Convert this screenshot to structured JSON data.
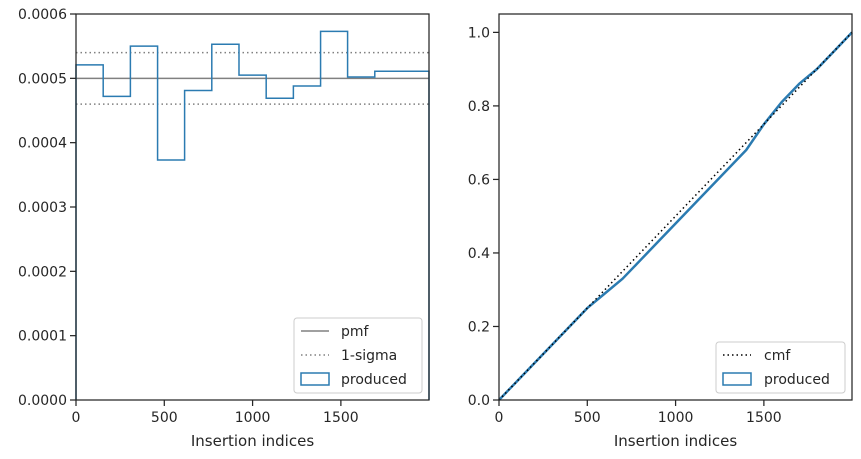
{
  "colors": {
    "pmf": "#808080",
    "sigma": "#808080",
    "produced": "#2b7bb1",
    "cmf": "#000000",
    "axes": "#262626"
  },
  "chart_data": [
    {
      "type": "line",
      "xlabel": "Insertion indices",
      "ylabel": "",
      "xlim": [
        0,
        1999
      ],
      "ylim": [
        0,
        0.0006
      ],
      "xticks": [
        0,
        500,
        1000,
        1500
      ],
      "yticks": [
        0.0,
        0.0001,
        0.0002,
        0.0003,
        0.0004,
        0.0005,
        0.0006
      ],
      "ytick_labels": [
        "0.0000",
        "0.0001",
        "0.0002",
        "0.0003",
        "0.0004",
        "0.0005",
        "0.0006"
      ],
      "legend_position": "bottom-right",
      "pmf": {
        "name": "pmf",
        "value": 0.0005
      },
      "sigma": {
        "name": "1-sigma",
        "values": [
          0.00054,
          0.00046
        ]
      },
      "produced": {
        "name": "produced",
        "style": "step histogram",
        "bin_edges": [
          0,
          154,
          308,
          462,
          615,
          769,
          923,
          1077,
          1231,
          1385,
          1538,
          1692,
          1999
        ],
        "values": [
          0.000521,
          0.000472,
          0.00055,
          0.000373,
          0.000481,
          0.000553,
          0.000505,
          0.000469,
          0.000488,
          0.000573,
          0.000502,
          0.000511
        ]
      }
    },
    {
      "type": "line",
      "xlabel": "Insertion indices",
      "ylabel": "",
      "xlim": [
        0,
        1999
      ],
      "ylim": [
        0,
        1.05
      ],
      "xticks": [
        0,
        500,
        1000,
        1500
      ],
      "yticks": [
        0.0,
        0.2,
        0.4,
        0.6,
        0.8,
        1.0
      ],
      "ytick_labels": [
        "0.0",
        "0.2",
        "0.4",
        "0.6",
        "0.8",
        "1.0"
      ],
      "legend_position": "bottom-right",
      "cmf": {
        "name": "cmf",
        "x": [
          0,
          1999
        ],
        "y": [
          0,
          1.0
        ]
      },
      "produced": {
        "name": "produced",
        "x": [
          0,
          100,
          200,
          300,
          400,
          500,
          600,
          700,
          800,
          900,
          1000,
          1100,
          1200,
          1300,
          1400,
          1500,
          1600,
          1700,
          1800,
          1900,
          1999
        ],
        "y": [
          0,
          0.05,
          0.1,
          0.15,
          0.2,
          0.25,
          0.29,
          0.33,
          0.38,
          0.43,
          0.48,
          0.53,
          0.58,
          0.63,
          0.68,
          0.75,
          0.81,
          0.86,
          0.9,
          0.95,
          1.0
        ]
      }
    }
  ]
}
